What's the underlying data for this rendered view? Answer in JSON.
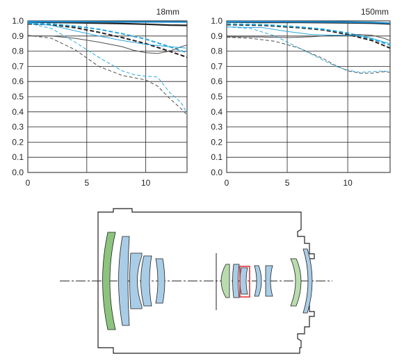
{
  "chart_data": [
    {
      "type": "line",
      "title": "18mm",
      "xlabel": "",
      "ylabel": "",
      "xlim": [
        0,
        13.5
      ],
      "ylim": [
        0,
        1.0
      ],
      "x_ticks": [
        "0",
        "5",
        "10"
      ],
      "x_tick_values": [
        0,
        5,
        10
      ],
      "y_ticks": [
        "0.0",
        "0.1",
        "0.2",
        "0.3",
        "0.4",
        "0.5",
        "0.6",
        "0.7",
        "0.8",
        "0.9",
        "1.0"
      ],
      "y_tick_values": [
        0,
        0.1,
        0.2,
        0.3,
        0.4,
        0.5,
        0.6,
        0.7,
        0.8,
        0.9,
        1.0
      ],
      "grid": true,
      "series": [
        {
          "color": "#231f20",
          "width": 2.2,
          "dash": "",
          "points": [
            [
              0,
              0.992
            ],
            [
              2,
              0.99
            ],
            [
              4,
              0.988
            ],
            [
              6,
              0.985
            ],
            [
              8,
              0.982
            ],
            [
              10,
              0.978
            ],
            [
              12,
              0.972
            ],
            [
              13.5,
              0.97
            ]
          ]
        },
        {
          "color": "#1b8ed1",
          "width": 2.2,
          "dash": "",
          "points": [
            [
              0,
              0.995
            ],
            [
              3,
              0.995
            ],
            [
              6,
              0.994
            ],
            [
              9,
              0.993
            ],
            [
              12,
              0.993
            ],
            [
              13.5,
              0.992
            ]
          ]
        },
        {
          "color": "#231f20",
          "width": 2.0,
          "dash": "6,3",
          "points": [
            [
              0,
              0.98
            ],
            [
              2,
              0.975
            ],
            [
              4,
              0.955
            ],
            [
              6,
              0.925
            ],
            [
              8,
              0.89
            ],
            [
              10,
              0.85
            ],
            [
              12,
              0.8
            ],
            [
              13.5,
              0.76
            ]
          ]
        },
        {
          "color": "#27a8e0",
          "width": 2.0,
          "dash": "6,3",
          "points": [
            [
              0,
              0.985
            ],
            [
              2,
              0.98
            ],
            [
              4,
              0.965
            ],
            [
              6,
              0.945
            ],
            [
              8,
              0.915
            ],
            [
              10,
              0.88
            ],
            [
              12,
              0.83
            ],
            [
              13.5,
              0.79
            ]
          ]
        },
        {
          "color": "#4d4d4d",
          "width": 1.0,
          "dash": "",
          "points": [
            [
              0,
              0.902
            ],
            [
              2,
              0.9
            ],
            [
              4,
              0.885
            ],
            [
              6,
              0.86
            ],
            [
              8,
              0.83
            ],
            [
              9,
              0.805
            ],
            [
              10,
              0.79
            ],
            [
              11,
              0.785
            ],
            [
              12,
              0.8
            ],
            [
              13,
              0.83
            ],
            [
              13.5,
              0.84
            ]
          ]
        },
        {
          "color": "#27a8e0",
          "width": 1.0,
          "dash": "",
          "points": [
            [
              0,
              0.985
            ],
            [
              2,
              0.97
            ],
            [
              4,
              0.935
            ],
            [
              6,
              0.9
            ],
            [
              8,
              0.87
            ],
            [
              10,
              0.845
            ],
            [
              12,
              0.83
            ],
            [
              13.5,
              0.82
            ]
          ]
        },
        {
          "color": "#4d4d4d",
          "width": 1.0,
          "dash": "5,3",
          "points": [
            [
              0,
              0.905
            ],
            [
              2,
              0.885
            ],
            [
              4,
              0.81
            ],
            [
              6,
              0.7
            ],
            [
              8,
              0.64
            ],
            [
              10,
              0.61
            ],
            [
              11,
              0.57
            ],
            [
              12,
              0.49
            ],
            [
              13,
              0.42
            ],
            [
              13.5,
              0.38
            ]
          ]
        },
        {
          "color": "#27a8e0",
          "width": 1.0,
          "dash": "5,3",
          "points": [
            [
              0,
              0.985
            ],
            [
              2,
              0.95
            ],
            [
              4,
              0.86
            ],
            [
              6,
              0.76
            ],
            [
              8,
              0.67
            ],
            [
              9,
              0.645
            ],
            [
              10,
              0.635
            ],
            [
              11,
              0.63
            ],
            [
              12,
              0.53
            ],
            [
              13,
              0.46
            ],
            [
              13.5,
              0.39
            ]
          ]
        }
      ]
    },
    {
      "type": "line",
      "title": "150mm",
      "xlabel": "",
      "ylabel": "",
      "xlim": [
        0,
        13.5
      ],
      "ylim": [
        0,
        1.0
      ],
      "x_ticks": [
        "0",
        "5",
        "10"
      ],
      "x_tick_values": [
        0,
        5,
        10
      ],
      "y_ticks": [
        "0.0",
        "0.1",
        "0.2",
        "0.3",
        "0.4",
        "0.5",
        "0.6",
        "0.7",
        "0.8",
        "0.9",
        "1.0"
      ],
      "y_tick_values": [
        0,
        0.1,
        0.2,
        0.3,
        0.4,
        0.5,
        0.6,
        0.7,
        0.8,
        0.9,
        1.0
      ],
      "grid": true,
      "series": [
        {
          "color": "#231f20",
          "width": 2.2,
          "dash": "",
          "points": [
            [
              0,
              0.992
            ],
            [
              3,
              0.99
            ],
            [
              6,
              0.99
            ],
            [
              9,
              0.988
            ],
            [
              12,
              0.985
            ],
            [
              13.5,
              0.98
            ]
          ]
        },
        {
          "color": "#1b8ed1",
          "width": 2.2,
          "dash": "",
          "points": [
            [
              0,
              0.995
            ],
            [
              3,
              0.995
            ],
            [
              6,
              0.994
            ],
            [
              9,
              0.993
            ],
            [
              12,
              0.99
            ],
            [
              13.5,
              0.985
            ]
          ]
        },
        {
          "color": "#231f20",
          "width": 2.0,
          "dash": "6,3",
          "points": [
            [
              0,
              0.975
            ],
            [
              3,
              0.97
            ],
            [
              6,
              0.955
            ],
            [
              8,
              0.94
            ],
            [
              10,
              0.91
            ],
            [
              12,
              0.87
            ],
            [
              13.5,
              0.82
            ]
          ]
        },
        {
          "color": "#27a8e0",
          "width": 2.0,
          "dash": "6,3",
          "points": [
            [
              0,
              0.98
            ],
            [
              3,
              0.975
            ],
            [
              6,
              0.96
            ],
            [
              8,
              0.945
            ],
            [
              10,
              0.92
            ],
            [
              12,
              0.88
            ],
            [
              13.5,
              0.84
            ]
          ]
        },
        {
          "color": "#4d4d4d",
          "width": 1.0,
          "dash": "",
          "points": [
            [
              0,
              0.895
            ],
            [
              3,
              0.893
            ],
            [
              5,
              0.89
            ],
            [
              7,
              0.895
            ],
            [
              9,
              0.905
            ],
            [
              11,
              0.91
            ],
            [
              12,
              0.905
            ],
            [
              13,
              0.885
            ],
            [
              13.5,
              0.87
            ]
          ]
        },
        {
          "color": "#27a8e0",
          "width": 1.0,
          "dash": "",
          "points": [
            [
              0,
              0.96
            ],
            [
              3,
              0.955
            ],
            [
              5,
              0.93
            ],
            [
              7,
              0.91
            ],
            [
              9,
              0.905
            ],
            [
              11,
              0.905
            ],
            [
              12,
              0.885
            ],
            [
              13,
              0.86
            ],
            [
              13.5,
              0.85
            ]
          ]
        },
        {
          "color": "#4d4d4d",
          "width": 1.0,
          "dash": "5,3",
          "points": [
            [
              0,
              0.892
            ],
            [
              2,
              0.885
            ],
            [
              4,
              0.865
            ],
            [
              6,
              0.82
            ],
            [
              8,
              0.75
            ],
            [
              9,
              0.705
            ],
            [
              10,
              0.67
            ],
            [
              11,
              0.655
            ],
            [
              12,
              0.655
            ],
            [
              13,
              0.665
            ],
            [
              13.5,
              0.66
            ]
          ]
        },
        {
          "color": "#27a8e0",
          "width": 1.0,
          "dash": "5,3",
          "points": [
            [
              0,
              0.96
            ],
            [
              2,
              0.95
            ],
            [
              4,
              0.9
            ],
            [
              6,
              0.82
            ],
            [
              8,
              0.74
            ],
            [
              9,
              0.7
            ],
            [
              10,
              0.675
            ],
            [
              11,
              0.66
            ],
            [
              12,
              0.665
            ],
            [
              13,
              0.67
            ],
            [
              13.5,
              0.66
            ]
          ]
        }
      ]
    }
  ],
  "diagram": {
    "colors": {
      "lens_blue": "#a9cde6",
      "lens_green": "#8cc47e",
      "lens_green_light": "#b9dcae",
      "outline": "#231f20",
      "highlight": "#e0292d"
    }
  }
}
